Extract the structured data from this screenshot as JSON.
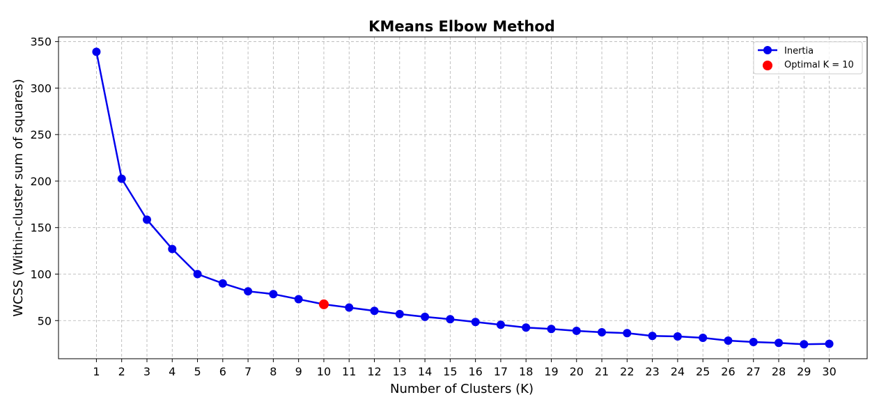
{
  "chart_data": {
    "type": "line",
    "title": "KMeans Elbow Method",
    "xlabel": "Number of Clusters (K)",
    "ylabel": "WCSS (Within-cluster sum of squares)",
    "x": [
      1,
      2,
      3,
      4,
      5,
      6,
      7,
      8,
      9,
      10,
      11,
      12,
      13,
      14,
      15,
      16,
      17,
      18,
      19,
      20,
      21,
      22,
      23,
      24,
      25,
      26,
      27,
      28,
      29,
      30
    ],
    "xlim": [
      -0.5,
      31.5
    ],
    "ylim": [
      9,
      355
    ],
    "yticks": [
      50,
      100,
      150,
      200,
      250,
      300,
      350
    ],
    "grid": true,
    "legend_position": "top-right",
    "series": [
      {
        "name": "Inertia",
        "color": "#0000ee",
        "marker": "circle",
        "values": [
          339,
          202.5,
          158.5,
          127,
          100,
          90,
          81.5,
          78.5,
          73,
          67.5,
          64,
          60.5,
          57,
          54,
          51.5,
          48.5,
          45.5,
          42.5,
          41,
          39,
          37.5,
          36.5,
          33.5,
          33,
          31.5,
          28.5,
          27,
          26,
          24.5,
          25
        ]
      }
    ],
    "highlight": {
      "name": "Optimal K = 10",
      "x": 10,
      "y": 67.5,
      "color": "#ff0000"
    }
  }
}
